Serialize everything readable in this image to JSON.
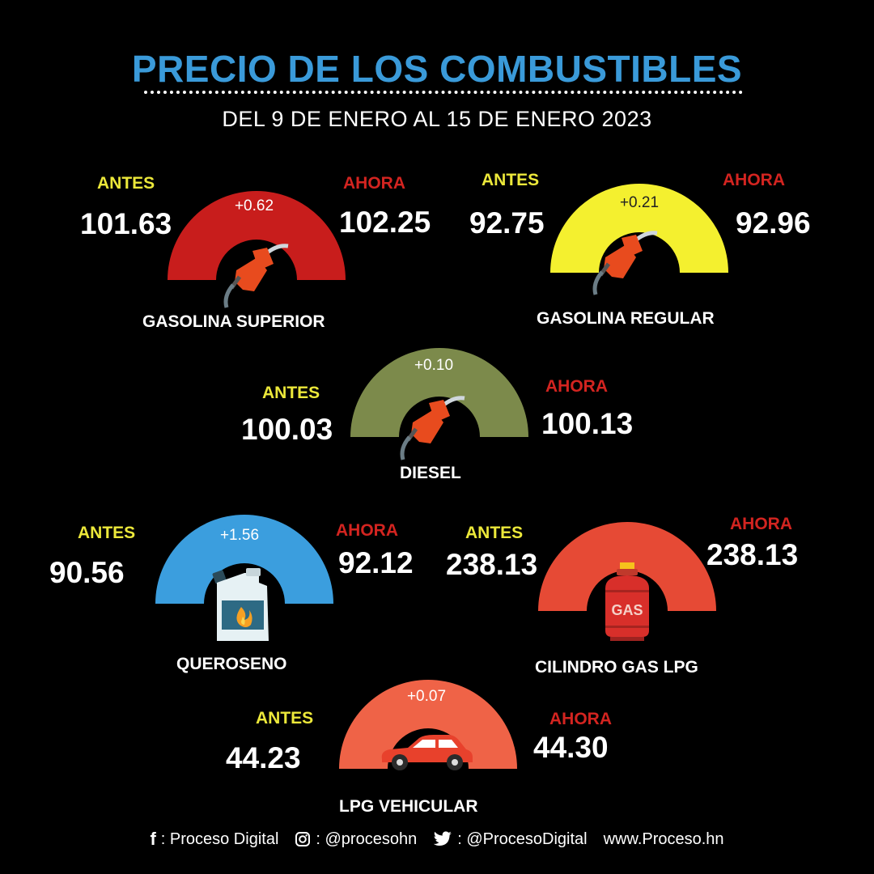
{
  "header": {
    "title": "PRECIO DE LOS COMBUSTIBLES",
    "subtitle": "DEL  9 DE ENERO AL 15 DE ENERO 2023"
  },
  "labels": {
    "antes": "ANTES",
    "ahora": "AHORA"
  },
  "fuels": [
    {
      "name": "GASOLINA SUPERIOR",
      "antes": "101.63",
      "ahora": "102.25",
      "delta": "+0.62",
      "color": "#c81d1c",
      "icon": "fuel-pump-icon"
    },
    {
      "name": "GASOLINA REGULAR",
      "antes": "92.75",
      "ahora": "92.96",
      "delta": "+0.21",
      "color": "#f4f02f",
      "icon": "fuel-pump-icon"
    },
    {
      "name": "DIESEL",
      "antes": "100.03",
      "ahora": "100.13",
      "delta": "+0.10",
      "color": "#7c8a4b",
      "icon": "fuel-pump-icon"
    },
    {
      "name": "QUEROSENO",
      "antes": "90.56",
      "ahora": "92.12",
      "delta": "+1.56",
      "color": "#3b9ede",
      "icon": "kerosene-jerrycan-icon"
    },
    {
      "name": "CILINDRO GAS LPG",
      "antes": "238.13",
      "ahora": "238.13",
      "delta": "",
      "color": "#e64a35",
      "icon": "gas-cylinder-icon",
      "cylinder_text": "GAS"
    },
    {
      "name": "LPG VEHICULAR",
      "antes": "44.23",
      "ahora": "44.30",
      "delta": "+0.07",
      "color": "#ef6347",
      "icon": "car-icon"
    }
  ],
  "footer": {
    "facebook_icon": "f",
    "facebook": ": Proceso Digital",
    "instagram": ": @procesohn",
    "twitter": ": @ProcesoDigital",
    "website": "www.Proceso.hn"
  }
}
